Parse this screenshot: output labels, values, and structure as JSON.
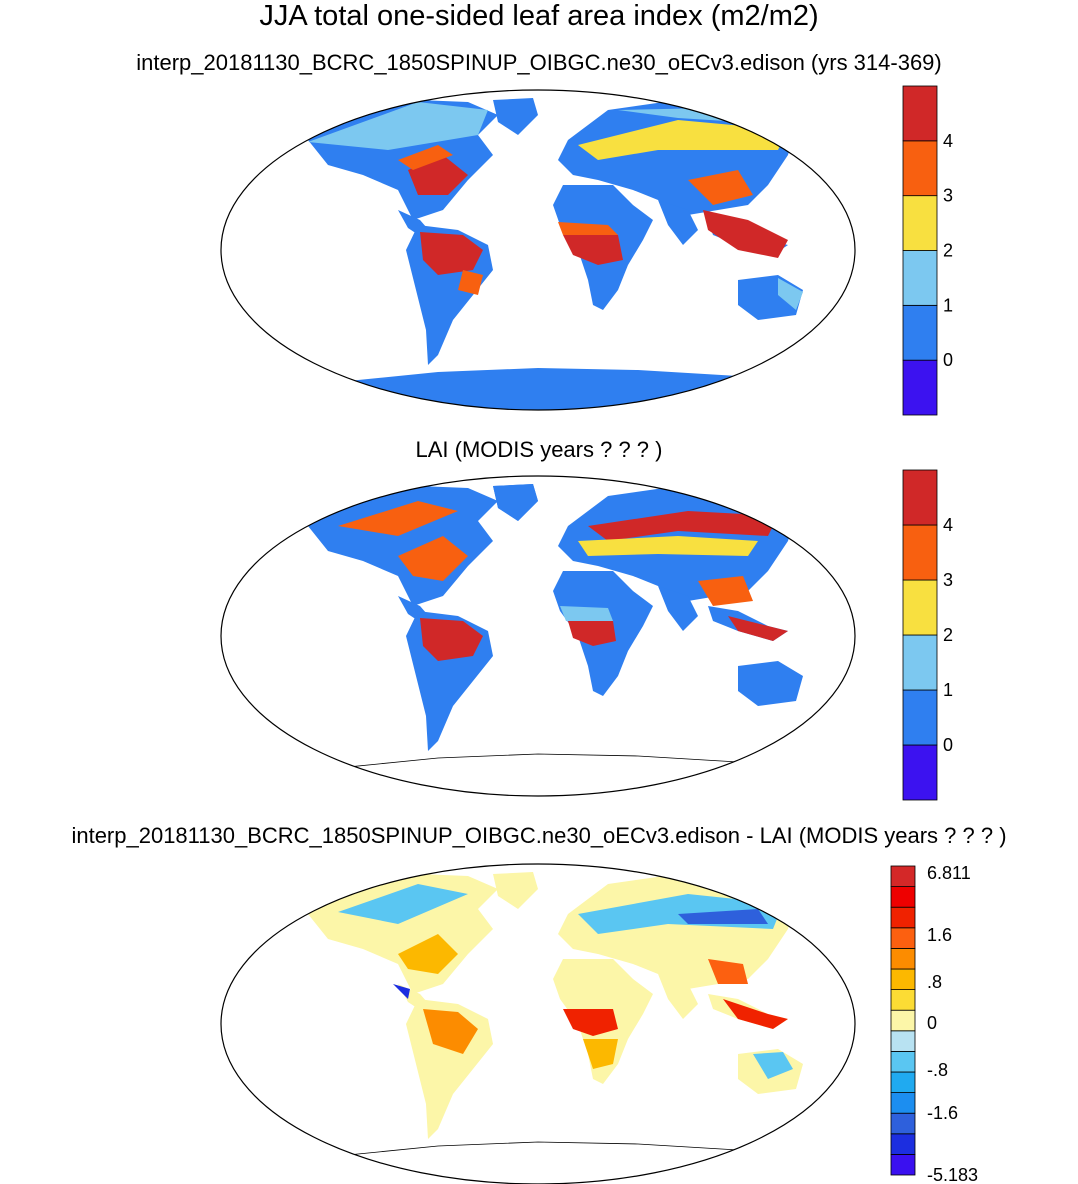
{
  "title": "JJA total one-sided leaf area index (m2/m2)",
  "panels": [
    {
      "subtitle": "interp_20181130_BCRC_1850SPINUP_OIBGC.ne30_oECv3.edison (yrs 314-369)",
      "colorbar": {
        "colors": [
          "#3c12f0",
          "#2f7ff0",
          "#7cc8f0",
          "#f8e040",
          "#f86010",
          "#d02828"
        ],
        "labels": [
          "0",
          "1",
          "2",
          "3",
          "4"
        ]
      }
    },
    {
      "subtitle": "LAI (MODIS years ? ? ? )",
      "colorbar": {
        "colors": [
          "#3c12f0",
          "#2f7ff0",
          "#7cc8f0",
          "#f8e040",
          "#f86010",
          "#d02828"
        ],
        "labels": [
          "0",
          "1",
          "2",
          "3",
          "4"
        ]
      }
    },
    {
      "subtitle": "interp_20181130_BCRC_1850SPINUP_OIBGC.ne30_oECv3.edison - LAI (MODIS years ? ? ? )",
      "colorbar": {
        "colors": [
          "#3a10f0",
          "#1c2ee0",
          "#2e60dc",
          "#1c8ef0",
          "#20aaf0",
          "#5ac6f2",
          "#b8e2f2",
          "#fcf6a8",
          "#fcdc34",
          "#fcb800",
          "#fc8c00",
          "#fc6010",
          "#f02200",
          "#ee0000",
          "#d42828"
        ],
        "labels": [
          "6.811",
          "1.6",
          ".8",
          "0",
          "-.8",
          "-1.6",
          "-5.183"
        ]
      }
    }
  ],
  "land_colors": {
    "desert": "#2f7ff0",
    "sparse": "#7cc8f0",
    "medium": "#f8e040",
    "high": "#f86010",
    "forest": "#d02828",
    "diff_neutral": "#fcf6a8",
    "diff_positive": "#fcb800",
    "diff_negative": "#5ac6f2"
  }
}
